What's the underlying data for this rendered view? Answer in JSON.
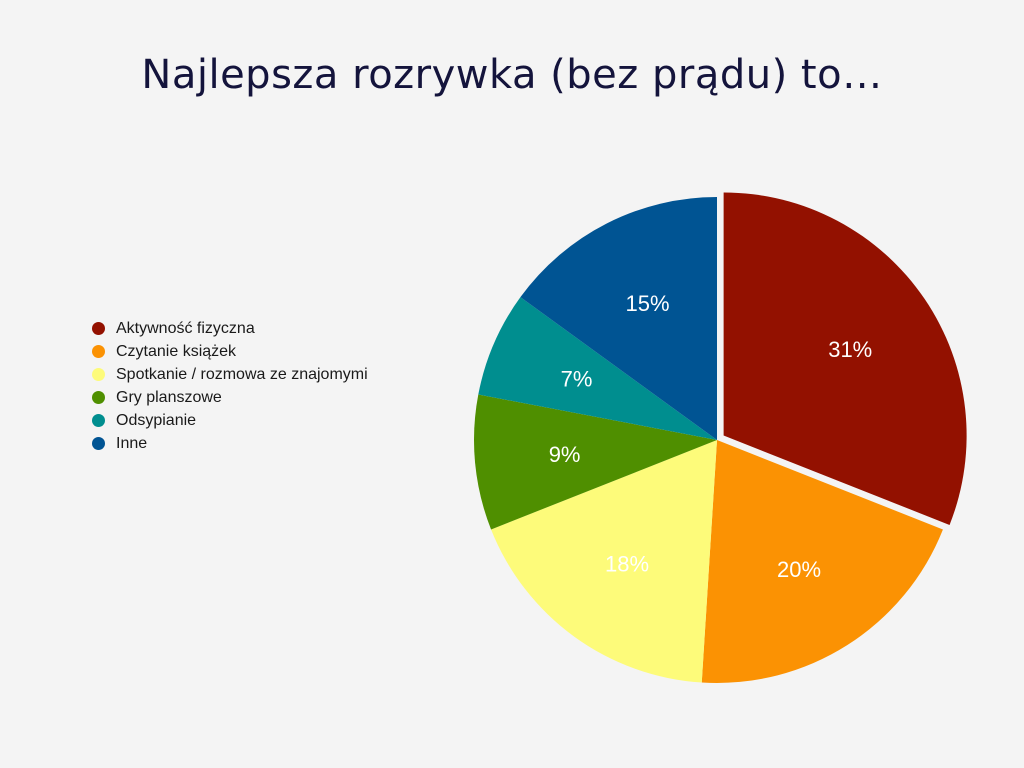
{
  "slide": {
    "title": "Najlepsza rozrywka (bez prądu) to…"
  },
  "chart_data": {
    "type": "pie",
    "title": "Najlepsza rozrywka (bez prądu) to…",
    "legend_placement": "left",
    "start_angle_deg": 0,
    "direction": "clockwise",
    "exploded": [
      "Aktywność fizyczna"
    ],
    "slices": [
      {
        "label": "Aktywność fizyczna",
        "value": 31,
        "display": "31%",
        "color": "#931100"
      },
      {
        "label": "Czytanie książek",
        "value": 20,
        "display": "20%",
        "color": "#fb9203"
      },
      {
        "label": "Spotkanie / rozmowa ze znajomymi",
        "value": 18,
        "display": "18%",
        "color": "#fdfb7a"
      },
      {
        "label": "Gry planszowe",
        "value": 9,
        "display": "9%",
        "color": "#4f8f00"
      },
      {
        "label": "Odsypianie",
        "value": 7,
        "display": "7%",
        "color": "#008e8f"
      },
      {
        "label": "Inne",
        "value": 15,
        "display": "15%",
        "color": "#005493"
      }
    ]
  }
}
